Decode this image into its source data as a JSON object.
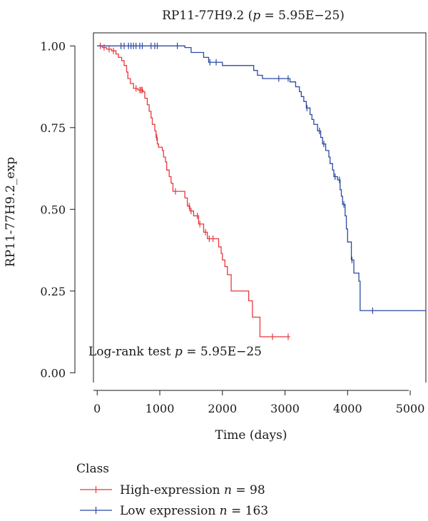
{
  "chart_data": {
    "type": "line",
    "subtype": "kaplan-meier",
    "title": "RP11-77H9.2 (p = 5.95E−25)",
    "title_parts": {
      "before": "RP11-77H9.2 (",
      "p": "p",
      "after": " = 5.95E−25)"
    },
    "xlabel": "Time (days)",
    "ylabel": "RP11-77H9.2_exp",
    "xlim": [
      -60,
      5250
    ],
    "ylim": [
      -0.03,
      1.04
    ],
    "x_ticks": [
      0,
      1000,
      2000,
      3000,
      4000,
      5000
    ],
    "y_ticks": [
      0.0,
      0.25,
      0.5,
      0.75,
      1.0
    ],
    "y_tick_labels": [
      "0.00",
      "0.25",
      "0.50",
      "0.75",
      "1.00"
    ],
    "annotation": {
      "before": "Log-rank test ",
      "p": "p",
      "after": " = 5.95E−25"
    },
    "legend": {
      "title": "Class",
      "placement": "bottom-left"
    },
    "series": [
      {
        "name": "High-expression n = 98",
        "label_parts": {
          "text": "High-expression ",
          "n": "n",
          "after": " = 98"
        },
        "color": "#e8383d",
        "steps": [
          [
            0,
            1.0
          ],
          [
            80,
            0.995
          ],
          [
            150,
            0.99
          ],
          [
            230,
            0.985
          ],
          [
            300,
            0.975
          ],
          [
            340,
            0.965
          ],
          [
            390,
            0.955
          ],
          [
            430,
            0.94
          ],
          [
            470,
            0.92
          ],
          [
            490,
            0.9
          ],
          [
            530,
            0.885
          ],
          [
            580,
            0.87
          ],
          [
            650,
            0.865
          ],
          [
            730,
            0.86
          ],
          [
            760,
            0.84
          ],
          [
            800,
            0.82
          ],
          [
            830,
            0.8
          ],
          [
            860,
            0.78
          ],
          [
            880,
            0.76
          ],
          [
            920,
            0.74
          ],
          [
            940,
            0.72
          ],
          [
            960,
            0.7
          ],
          [
            980,
            0.69
          ],
          [
            1040,
            0.68
          ],
          [
            1060,
            0.66
          ],
          [
            1090,
            0.645
          ],
          [
            1110,
            0.62
          ],
          [
            1150,
            0.6
          ],
          [
            1180,
            0.58
          ],
          [
            1210,
            0.555
          ],
          [
            1400,
            0.535
          ],
          [
            1440,
            0.51
          ],
          [
            1480,
            0.495
          ],
          [
            1540,
            0.48
          ],
          [
            1620,
            0.455
          ],
          [
            1700,
            0.43
          ],
          [
            1760,
            0.41
          ],
          [
            1940,
            0.385
          ],
          [
            1980,
            0.365
          ],
          [
            2000,
            0.345
          ],
          [
            2040,
            0.325
          ],
          [
            2080,
            0.3
          ],
          [
            2140,
            0.25
          ],
          [
            2420,
            0.22
          ],
          [
            2480,
            0.17
          ],
          [
            2600,
            0.11
          ],
          [
            3080,
            0.11
          ]
        ],
        "censors": [
          [
            50,
            1.0
          ],
          [
            110,
            0.995
          ],
          [
            190,
            0.99
          ],
          [
            260,
            0.985
          ],
          [
            620,
            0.87
          ],
          [
            680,
            0.865
          ],
          [
            700,
            0.865
          ],
          [
            720,
            0.86
          ],
          [
            950,
            0.72
          ],
          [
            1250,
            0.555
          ],
          [
            1470,
            0.51
          ],
          [
            1500,
            0.495
          ],
          [
            1600,
            0.48
          ],
          [
            1640,
            0.455
          ],
          [
            1730,
            0.43
          ],
          [
            1790,
            0.41
          ],
          [
            1850,
            0.41
          ],
          [
            2800,
            0.11
          ],
          [
            3050,
            0.11
          ]
        ]
      },
      {
        "name": "Low expression n = 163",
        "label_parts": {
          "text": "Low expression ",
          "n": "n",
          "after": " = 163"
        },
        "color": "#2c4aa3",
        "steps": [
          [
            0,
            1.0
          ],
          [
            1400,
            0.995
          ],
          [
            1500,
            0.98
          ],
          [
            1700,
            0.965
          ],
          [
            1780,
            0.95
          ],
          [
            2000,
            0.94
          ],
          [
            2500,
            0.925
          ],
          [
            2560,
            0.91
          ],
          [
            2640,
            0.9
          ],
          [
            3080,
            0.89
          ],
          [
            3170,
            0.875
          ],
          [
            3230,
            0.86
          ],
          [
            3260,
            0.845
          ],
          [
            3300,
            0.83
          ],
          [
            3340,
            0.81
          ],
          [
            3400,
            0.79
          ],
          [
            3430,
            0.775
          ],
          [
            3460,
            0.76
          ],
          [
            3520,
            0.74
          ],
          [
            3570,
            0.72
          ],
          [
            3600,
            0.7
          ],
          [
            3650,
            0.68
          ],
          [
            3700,
            0.66
          ],
          [
            3720,
            0.64
          ],
          [
            3760,
            0.62
          ],
          [
            3780,
            0.6
          ],
          [
            3840,
            0.59
          ],
          [
            3880,
            0.56
          ],
          [
            3900,
            0.54
          ],
          [
            3920,
            0.515
          ],
          [
            3960,
            0.48
          ],
          [
            3980,
            0.44
          ],
          [
            4000,
            0.4
          ],
          [
            4060,
            0.345
          ],
          [
            4100,
            0.305
          ],
          [
            4180,
            0.28
          ],
          [
            4200,
            0.19
          ],
          [
            5250,
            0.19
          ]
        ],
        "censors": [
          [
            380,
            1.0
          ],
          [
            430,
            1.0
          ],
          [
            500,
            1.0
          ],
          [
            540,
            1.0
          ],
          [
            580,
            1.0
          ],
          [
            620,
            1.0
          ],
          [
            680,
            1.0
          ],
          [
            720,
            1.0
          ],
          [
            860,
            1.0
          ],
          [
            920,
            1.0
          ],
          [
            960,
            1.0
          ],
          [
            1280,
            1.0
          ],
          [
            1800,
            0.95
          ],
          [
            1900,
            0.95
          ],
          [
            2900,
            0.89
          ],
          [
            3050,
            0.89
          ],
          [
            3350,
            0.81
          ],
          [
            3550,
            0.74
          ],
          [
            3620,
            0.7
          ],
          [
            3800,
            0.6
          ],
          [
            3870,
            0.59
          ],
          [
            3940,
            0.515
          ],
          [
            4070,
            0.345
          ],
          [
            4400,
            0.19
          ]
        ]
      }
    ]
  }
}
